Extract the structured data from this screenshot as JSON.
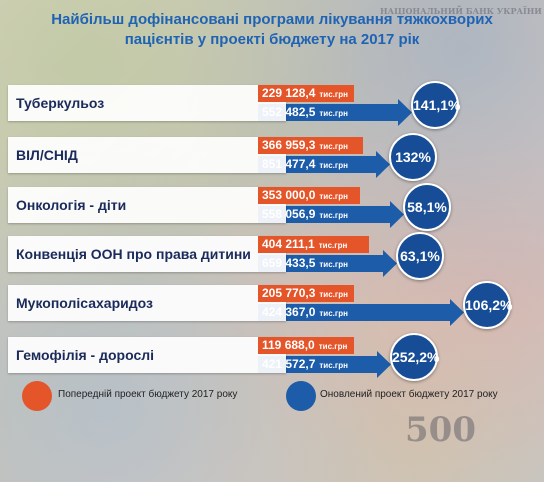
{
  "title_line1": "Найбільш дофінансовані програми лікування тяжкохворих",
  "title_line2": "пацієнтів у проекті бюджету на 2017 рік",
  "unit": "тис.грн",
  "legend": {
    "previous": "Попередній проект бюджету 2017 року",
    "updated": "Оновлений проект бюджету 2017 року"
  },
  "colors": {
    "previous": "#e4552a",
    "updated": "#1c5ca8",
    "title": "#1f63b3"
  },
  "background_text": {
    "bank": "НАЦІОНАЛЬНИЙ БАНК УКРАЇНИ",
    "denomination": "500"
  },
  "chart_data": {
    "type": "bar",
    "title": "Найбільш дофінансовані програми лікування тяжкохворих пацієнтів у проекті бюджету на 2017 рік",
    "categories": [
      "Туберкульоз",
      "ВІЛ/СНІД",
      "Онкологія - діти",
      "Конвенція ООН про права дитини",
      "Мукополісахаридоз",
      "Гемофілія - дорослі"
    ],
    "series": [
      {
        "name": "Попередній проект бюджету 2017 року",
        "values": [
          229128.4,
          366959.3,
          353000.0,
          404211.1,
          205770.3,
          119688.0
        ],
        "labels": [
          "229 128,4",
          "366 959,3",
          "353 000,0",
          "404 211,1",
          "205 770,3",
          "119 688,0"
        ]
      },
      {
        "name": "Оновлений проект бюджету 2017 року",
        "values": [
          552482.5,
          851477.4,
          558056.9,
          659433.5,
          424367.0,
          421572.7
        ],
        "labels": [
          "552 482,5",
          "851 477,4",
          "558 056,9",
          "659 433,5",
          "424 367,0",
          "421 572,7"
        ]
      }
    ],
    "increase_pct": [
      "141,1%",
      "132%",
      "58,1%",
      "63,1%",
      "106,2%",
      "252,2%"
    ]
  }
}
